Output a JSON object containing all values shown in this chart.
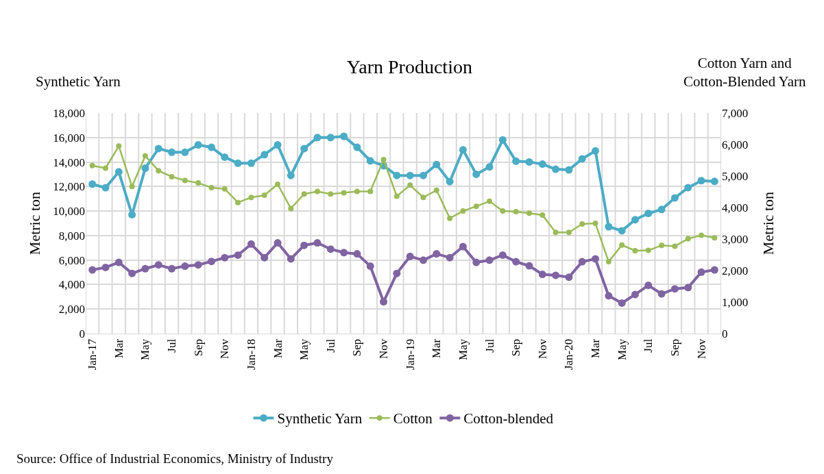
{
  "chart_data": {
    "type": "line",
    "title": "Yarn Production",
    "ylabel": "Metric ton",
    "y2label": "Metric ton",
    "annotations": [
      "Synthetic Yarn",
      "Cotton Yarn and\nCotton-Blended Yarn",
      "Source: Office of Industrial Economics, Ministry of Industry"
    ],
    "categories": [
      "Jan-17",
      null,
      "Mar",
      null,
      "May",
      null,
      "Jul",
      null,
      "Sep",
      null,
      "Nov",
      null,
      "Jan-18",
      null,
      "Mar",
      null,
      "May",
      null,
      "Jul",
      null,
      "Sep",
      null,
      "Nov",
      null,
      "Jan-19",
      null,
      "Mar",
      null,
      "May",
      null,
      "Jul",
      null,
      "Sep",
      null,
      "Nov",
      null,
      "Jan-20",
      null,
      "Mar",
      null,
      "May",
      null,
      "Jul",
      null,
      "Sep",
      null,
      "Nov",
      null
    ],
    "series": [
      {
        "name": "Synthetic Yarn",
        "color": "#4bacc6",
        "values": [
          12200,
          11900,
          13200,
          9700,
          13500,
          15100,
          14800,
          14800,
          15400,
          15200,
          14400,
          13900,
          13900,
          14600,
          15400,
          12900,
          15100,
          16000,
          16000,
          16100,
          15200,
          14100,
          13700,
          12900,
          12900,
          12900,
          13800,
          12400,
          15000,
          13000,
          13600,
          15800,
          14070,
          14010,
          13830,
          13410,
          13360,
          14260,
          14910,
          8720,
          8390,
          9290,
          9810,
          10130,
          11070,
          11910,
          12480,
          12420
        ]
      },
      {
        "name": "Cotton",
        "color": "#9bbb59",
        "axis": "y2",
        "values": [
          5330,
          5250,
          5950,
          4670,
          5640,
          5170,
          4980,
          4860,
          4780,
          4630,
          4590,
          4160,
          4320,
          4390,
          4740,
          3970,
          4430,
          4510,
          4430,
          4470,
          4510,
          4510,
          5520,
          4360,
          4710,
          4320,
          4550,
          3660,
          3890,
          4040,
          4200,
          3890,
          3870,
          3820,
          3760,
          3210,
          3210,
          3480,
          3500,
          2280,
          2810,
          2630,
          2640,
          2800,
          2770,
          3010,
          3120,
          3040
        ]
      },
      {
        "name": "Cotton-blended",
        "color": "#8064a2",
        "axis": "y2",
        "values": [
          2020,
          2100,
          2260,
          1910,
          2060,
          2180,
          2060,
          2140,
          2180,
          2290,
          2410,
          2490,
          2840,
          2410,
          2880,
          2370,
          2800,
          2880,
          2680,
          2570,
          2530,
          2140,
          1010,
          1910,
          2450,
          2330,
          2530,
          2410,
          2760,
          2260,
          2330,
          2490,
          2280,
          2150,
          1880,
          1850,
          1790,
          2280,
          2370,
          1200,
          970,
          1240,
          1530,
          1260,
          1420,
          1460,
          1950,
          2020
        ]
      }
    ],
    "ylim": [
      0,
      18000
    ],
    "yticks": [
      0,
      {
        "value": 2000,
        "label": "2,000"
      },
      {
        "value": 4000,
        "label": "4,000"
      },
      {
        "value": 6000,
        "label": "6,000"
      },
      {
        "value": 8000,
        "label": "8,000"
      },
      {
        "value": 10000,
        "label": "10,000"
      },
      {
        "value": 12000,
        "label": "12,000"
      },
      {
        "value": 14000,
        "label": "14,000"
      },
      {
        "value": 16000,
        "label": "16,000"
      },
      {
        "value": 18000,
        "label": "18,000"
      }
    ],
    "y2lim": [
      0,
      7000
    ],
    "y2ticks": [
      0,
      {
        "value": 1000,
        "label": "1,000"
      },
      {
        "value": 2000,
        "label": "2,000"
      },
      {
        "value": 3000,
        "label": "3,000"
      },
      {
        "value": 4000,
        "label": "4,000"
      },
      {
        "value": 5000,
        "label": "5,000"
      },
      {
        "value": 6000,
        "label": "6,000"
      },
      {
        "value": 7000,
        "label": "7,000"
      }
    ],
    "grid": true,
    "legend": "bottom",
    "marker": "circle",
    "line_style": "solid"
  }
}
